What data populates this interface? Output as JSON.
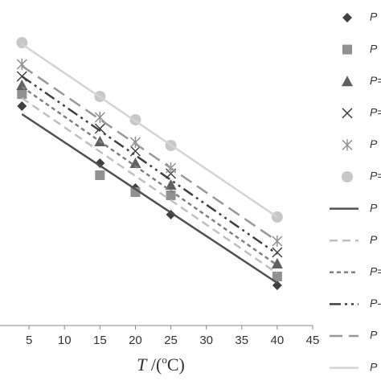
{
  "chart_data": {
    "type": "line",
    "xlabel": {
      "var": "T",
      "open": " /(",
      "sup": "o",
      "close": "C)"
    },
    "xlim": [
      0,
      45
    ],
    "xticks": [
      5,
      10,
      15,
      20,
      25,
      30,
      35,
      40,
      45
    ],
    "ylim": [
      0,
      100
    ],
    "series": [
      {
        "name": "P",
        "style": "marker",
        "marker": "diamond",
        "color": "#404040",
        "x": [
          4,
          15,
          20,
          25,
          40
        ],
        "values": [
          68.25,
          50.5,
          42.75,
          34.5,
          12.5
        ]
      },
      {
        "name": "P",
        "style": "marker",
        "marker": "square",
        "color": "#909090",
        "x": [
          4,
          15,
          20,
          25,
          40
        ],
        "values": [
          72,
          46.75,
          41.5,
          40.5,
          15.25
        ]
      },
      {
        "name": "P=",
        "style": "marker",
        "marker": "triangle",
        "color": "#606060",
        "x": [
          4,
          15,
          20,
          25,
          40
        ],
        "values": [
          74.75,
          57.25,
          50.5,
          43.75,
          19.25
        ]
      },
      {
        "name": "P=",
        "style": "marker",
        "marker": "x",
        "color": "#404040",
        "x": [
          4,
          15,
          20,
          25,
          40
        ],
        "values": [
          77.5,
          61.25,
          54.25,
          47.25,
          22.75
        ]
      },
      {
        "name": "P",
        "style": "marker",
        "marker": "star",
        "color": "#909090",
        "x": [
          4,
          15,
          20,
          25,
          40
        ],
        "values": [
          81.25,
          64.75,
          57,
          49,
          26.25
        ]
      },
      {
        "name": "P=",
        "style": "marker",
        "marker": "circle",
        "color": "#c8c8c8",
        "x": [
          4,
          15,
          20,
          25,
          40
        ],
        "values": [
          88,
          71.25,
          64,
          56,
          33.75
        ]
      },
      {
        "name": "P",
        "style": "line",
        "dash": "none",
        "color": "#505050",
        "x": [
          4,
          40
        ],
        "values": [
          65.75,
          13.25
        ]
      },
      {
        "name": "P",
        "style": "line",
        "dash": "10,6",
        "color": "#c0c0c0",
        "x": [
          4,
          40
        ],
        "values": [
          70.75,
          16.25
        ]
      },
      {
        "name": "P=",
        "style": "line",
        "dash": "5,4",
        "color": "#808080",
        "x": [
          4,
          40
        ],
        "values": [
          74.25,
          18.75
        ]
      },
      {
        "name": "P-",
        "style": "line",
        "dash": "14,5,3,5,3,5",
        "color": "#404040",
        "x": [
          4,
          40
        ],
        "values": [
          77.5,
          22.25
        ]
      },
      {
        "name": "P",
        "style": "line",
        "dash": "16,8",
        "color": "#999999",
        "x": [
          4,
          40
        ],
        "values": [
          80.75,
          26.25
        ]
      },
      {
        "name": "P",
        "style": "line",
        "dash": "none",
        "color": "#d4d4d4",
        "x": [
          4,
          40
        ],
        "values": [
          87.5,
          33.75
        ]
      }
    ]
  }
}
